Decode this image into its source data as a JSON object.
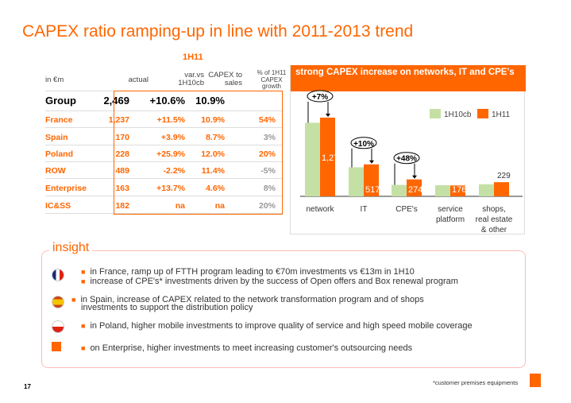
{
  "title": "CAPEX ratio ramping-up in line with 2011-2013 trend",
  "table": {
    "period": "1H11",
    "headers": [
      "in €m",
      "actual",
      "var.vs 1H10cb",
      "CAPEX to sales",
      "% of 1H11 CAPEX growth"
    ],
    "rows": [
      {
        "label": "Group",
        "actual": "2,469",
        "var": "+10.6%",
        "ratio": "10.9%",
        "growth": ""
      },
      {
        "label": "France",
        "actual": "1,237",
        "var": "+11.5%",
        "ratio": "10.9%",
        "growth": "54%"
      },
      {
        "label": "Spain",
        "actual": "170",
        "var": "+3.9%",
        "ratio": "8.7%",
        "growth": "3%"
      },
      {
        "label": "Poland",
        "actual": "228",
        "var": "+25.9%",
        "ratio": "12.0%",
        "growth": "20%"
      },
      {
        "label": "ROW",
        "actual": "489",
        "var": "-2.2%",
        "ratio": "11.4%",
        "growth": "-5%"
      },
      {
        "label": "Enterprise",
        "actual": "163",
        "var": "+13.7%",
        "ratio": "4.6%",
        "growth": "8%"
      },
      {
        "label": "IC&SS",
        "actual": "182",
        "var": "na",
        "ratio": "na",
        "growth": "20%"
      }
    ]
  },
  "chart_data": {
    "type": "bar",
    "title": "strong CAPEX increase on networks, IT and CPE's",
    "categories": [
      "network",
      "IT",
      "CPE's",
      "service platform",
      "shops, real estate & other"
    ],
    "series": [
      {
        "name": "1H10cb",
        "color": "#c5e0a5",
        "values": [
          1190,
          470,
          185,
          180,
          195
        ]
      },
      {
        "name": "1H11",
        "color": "#ff6600",
        "values": [
          1273,
          517,
          274,
          176,
          229
        ]
      }
    ],
    "data_labels": [
      "1,273",
      "517",
      "274",
      "176",
      "229"
    ],
    "annotations": [
      "+7%",
      "+10%",
      "+48%"
    ],
    "legend": "top-right",
    "grid": false
  },
  "insight": {
    "label": "insight",
    "items": [
      {
        "icon": "france-flag-icon",
        "lines": [
          "in France, ramp up of  FTTH program leading to €70m investments vs €13m in 1H10",
          "increase of CPE's* investments driven by the success of Open offers and Box renewal program"
        ]
      },
      {
        "icon": "spain-flag-icon",
        "lines": [
          "in Spain, increase of CAPEX related to the network transformation program and of shops investments to support the distribution policy"
        ]
      },
      {
        "icon": "poland-flag-icon",
        "lines": [
          "in Poland, higher mobile investments to improve quality of service and high speed mobile coverage"
        ]
      },
      {
        "icon": "business-services-logo-icon",
        "lines": [
          "on Enterprise, higher investments to meet increasing customer's outsourcing needs"
        ]
      }
    ]
  },
  "footer": {
    "page": "17",
    "footnote": "*customer premises equipments"
  },
  "colors": {
    "accent": "#ff6600",
    "green": "#c5e0a5"
  }
}
